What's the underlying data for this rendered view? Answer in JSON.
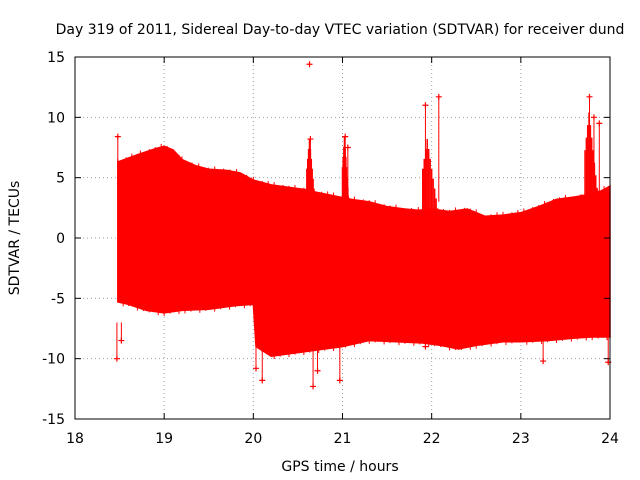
{
  "chart_data": {
    "type": "scatter",
    "title": "Day 319 of 2011, Sidereal Day-to-day VTEC variation (SDTVAR) for receiver dund",
    "xlabel": "GPS time / hours",
    "ylabel": "SDTVAR / TECUs",
    "xlim": [
      18,
      24
    ],
    "ylim": [
      -15,
      15
    ],
    "xticks": [
      18,
      19,
      20,
      21,
      22,
      23,
      24
    ],
    "yticks": [
      -15,
      -10,
      -5,
      0,
      5,
      10,
      15
    ],
    "grid": true,
    "color": "#ff0000",
    "marker": "+",
    "series": [
      {
        "name": "SDTVAR",
        "upper_envelope": [
          [
            18.48,
            6.3
          ],
          [
            18.7,
            6.9
          ],
          [
            18.9,
            7.4
          ],
          [
            19.0,
            7.6
          ],
          [
            19.1,
            7.3
          ],
          [
            19.2,
            6.5
          ],
          [
            19.35,
            6.0
          ],
          [
            19.5,
            5.7
          ],
          [
            19.7,
            5.6
          ],
          [
            19.85,
            5.4
          ],
          [
            20.0,
            4.8
          ],
          [
            20.2,
            4.4
          ],
          [
            20.4,
            4.2
          ],
          [
            20.6,
            4.0
          ],
          [
            20.7,
            3.8
          ],
          [
            20.9,
            3.5
          ],
          [
            21.1,
            3.2
          ],
          [
            21.3,
            3.0
          ],
          [
            21.5,
            2.6
          ],
          [
            21.7,
            2.4
          ],
          [
            21.85,
            2.3
          ],
          [
            22.0,
            2.4
          ],
          [
            22.2,
            2.2
          ],
          [
            22.4,
            2.4
          ],
          [
            22.6,
            1.8
          ],
          [
            22.8,
            1.9
          ],
          [
            23.0,
            2.1
          ],
          [
            23.2,
            2.6
          ],
          [
            23.4,
            3.2
          ],
          [
            23.6,
            3.4
          ],
          [
            23.75,
            3.6
          ],
          [
            23.9,
            3.9
          ],
          [
            24.0,
            4.3
          ]
        ],
        "lower_envelope": [
          [
            18.48,
            -5.3
          ],
          [
            18.6,
            -5.5
          ],
          [
            18.8,
            -6.0
          ],
          [
            19.0,
            -6.2
          ],
          [
            19.2,
            -6.0
          ],
          [
            19.5,
            -5.9
          ],
          [
            19.8,
            -5.6
          ],
          [
            20.0,
            -5.5
          ],
          [
            20.03,
            -9.0
          ],
          [
            20.2,
            -9.8
          ],
          [
            20.5,
            -9.5
          ],
          [
            20.8,
            -9.2
          ],
          [
            21.0,
            -9.0
          ],
          [
            21.3,
            -8.5
          ],
          [
            21.6,
            -8.6
          ],
          [
            21.9,
            -8.7
          ],
          [
            22.1,
            -8.9
          ],
          [
            22.3,
            -9.2
          ],
          [
            22.5,
            -8.9
          ],
          [
            22.8,
            -8.6
          ],
          [
            23.0,
            -8.6
          ],
          [
            23.3,
            -8.5
          ],
          [
            23.6,
            -8.3
          ],
          [
            23.8,
            -8.2
          ],
          [
            24.0,
            -8.2
          ]
        ],
        "spikes": [
          {
            "x": 18.48,
            "y": 8.4
          },
          {
            "x": 18.47,
            "y": -10.0
          },
          {
            "x": 18.52,
            "y": -8.5
          },
          {
            "x": 20.03,
            "y": -10.8
          },
          {
            "x": 20.1,
            "y": -11.8
          },
          {
            "x": 20.63,
            "y": 14.4
          },
          {
            "x": 20.64,
            "y": 8.2
          },
          {
            "x": 20.67,
            "y": -12.3
          },
          {
            "x": 20.72,
            "y": -11.0
          },
          {
            "x": 20.97,
            "y": -11.8
          },
          {
            "x": 21.03,
            "y": 8.4
          },
          {
            "x": 21.06,
            "y": 7.5
          },
          {
            "x": 21.93,
            "y": 11.0
          },
          {
            "x": 22.08,
            "y": 11.7
          },
          {
            "x": 21.93,
            "y": -9.0
          },
          {
            "x": 23.25,
            "y": -10.2
          },
          {
            "x": 23.77,
            "y": 11.7
          },
          {
            "x": 23.82,
            "y": 10.0
          },
          {
            "x": 23.88,
            "y": 9.5
          },
          {
            "x": 23.98,
            "y": -10.3
          }
        ],
        "peaks": [
          {
            "x0": 20.6,
            "x1": 20.72,
            "y": 8.2
          },
          {
            "x0": 21.0,
            "x1": 21.09,
            "y": 8.4
          },
          {
            "x0": 21.9,
            "x1": 22.1,
            "y": 8.2
          },
          {
            "x0": 23.72,
            "x1": 23.9,
            "y": 10.4
          }
        ]
      }
    ]
  }
}
